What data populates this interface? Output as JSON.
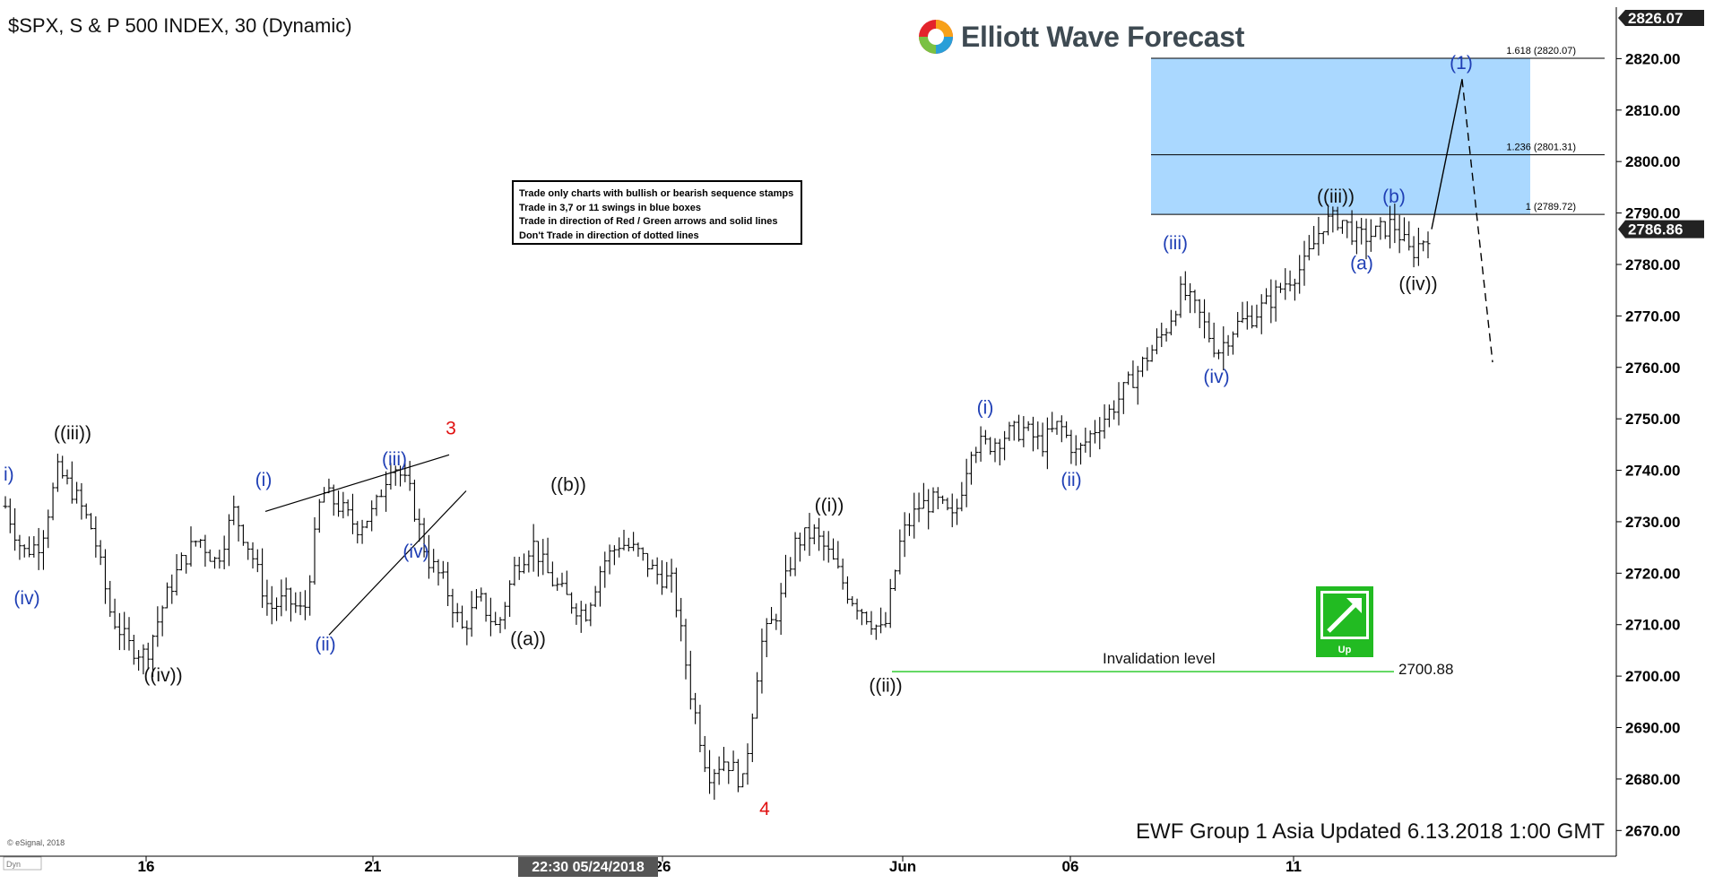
{
  "title": "$SPX, S & P 500 INDEX, 30 (Dynamic)",
  "brand": "Elliott Wave Forecast",
  "rules": [
    "Trade only charts with bullish or bearish sequence stamps",
    "Trade in 3,7 or 11 swings in blue boxes",
    "Trade in direction of Red / Green arrows and solid lines",
    "Don't Trade in direction of dotted lines"
  ],
  "footer": "EWF Group 1 Asia Updated 6.13.2018 1:00 GMT",
  "copyright": "© eSignal, 2018",
  "cursor_time": "22:30 05/24/2018",
  "chart_data": {
    "type": "bar",
    "ylim": [
      2665,
      2830
    ],
    "y_ticks": [
      2670,
      2680,
      2690,
      2700,
      2710,
      2720,
      2730,
      2740,
      2750,
      2760,
      2770,
      2780,
      2790,
      2800,
      2810,
      2820
    ],
    "y_tick_labels": [
      "2670.00",
      "2680.00",
      "2690.00",
      "2700.00",
      "2710.00",
      "2720.00",
      "2730.00",
      "2740.00",
      "2750.00",
      "2760.00",
      "2770.00",
      "2780.00",
      "2790.00",
      "2800.00",
      "2810.00",
      "2820.00"
    ],
    "x_tick_labels": [
      "16",
      "21",
      "26",
      "Jun",
      "06",
      "11"
    ],
    "high_price": "2826.07",
    "last_price": "2786.86",
    "last_price_value": 2786.86,
    "target_box": {
      "low": 2789.72,
      "high": 2820.07
    },
    "fib_levels": [
      {
        "label": "1.618 (2820.07)",
        "value": 2820.07
      },
      {
        "label": "1.236 (2801.31)",
        "value": 2801.31
      },
      {
        "label": "1 (2789.72)",
        "value": 2789.72
      }
    ],
    "invalidation": {
      "label": "Invalidation level",
      "value": 2700.88,
      "value_label": "2700.88"
    },
    "stamp_label": "Up",
    "wave_labels": [
      {
        "text": "i)",
        "price": 2738,
        "color": "blue"
      },
      {
        "text": "(iv)",
        "price": 2714,
        "color": "blue"
      },
      {
        "text": "((iii))",
        "price": 2746,
        "color": "black"
      },
      {
        "text": "((iv))",
        "price": 2699,
        "color": "black"
      },
      {
        "text": "(i)",
        "price": 2737,
        "color": "blue"
      },
      {
        "text": "(ii)",
        "price": 2705,
        "color": "blue"
      },
      {
        "text": "(iii)",
        "price": 2741,
        "color": "blue"
      },
      {
        "text": "(iv)",
        "price": 2723,
        "color": "blue"
      },
      {
        "text": "3",
        "price": 2747,
        "color": "red"
      },
      {
        "text": "((a))",
        "price": 2706,
        "color": "black"
      },
      {
        "text": "((b))",
        "price": 2736,
        "color": "black"
      },
      {
        "text": "4",
        "price": 2673,
        "color": "red"
      },
      {
        "text": "((i))",
        "price": 2732,
        "color": "black"
      },
      {
        "text": "((ii))",
        "price": 2697,
        "color": "black"
      },
      {
        "text": "(i)",
        "price": 2751,
        "color": "blue"
      },
      {
        "text": "(ii)",
        "price": 2737,
        "color": "blue"
      },
      {
        "text": "(iii)",
        "price": 2783,
        "color": "blue"
      },
      {
        "text": "(iv)",
        "price": 2757,
        "color": "blue"
      },
      {
        "text": "((iii))",
        "price": 2792,
        "color": "black"
      },
      {
        "text": "(a)",
        "price": 2779,
        "color": "blue"
      },
      {
        "text": "(b)",
        "price": 2792,
        "color": "blue"
      },
      {
        "text": "((iv))",
        "price": 2775,
        "color": "black"
      },
      {
        "text": "(1)",
        "price": 2818,
        "color": "blue"
      }
    ],
    "price_path": [
      2733,
      2724,
      2726,
      2740,
      2735,
      2728,
      2712,
      2706,
      2704,
      2714,
      2722,
      2727,
      2722,
      2732,
      2724,
      2713,
      2715,
      2712,
      2736,
      2733,
      2729,
      2732,
      2742,
      2736,
      2723,
      2718,
      2709,
      2715,
      2709,
      2721,
      2726,
      2719,
      2715,
      2712,
      2722,
      2726,
      2724,
      2720,
      2718,
      2697,
      2681,
      2684,
      2679,
      2706,
      2713,
      2726,
      2728,
      2723,
      2716,
      2712,
      2708,
      2727,
      2733,
      2734,
      2730,
      2745,
      2745,
      2747,
      2748,
      2745,
      2749,
      2743,
      2748,
      2752,
      2757,
      2762,
      2767,
      2775,
      2770,
      2763,
      2768,
      2770,
      2773,
      2777,
      2780,
      2788,
      2789,
      2785,
      2786,
      2788,
      2782,
      2786
    ]
  },
  "colors": {
    "box": "#aad8ff",
    "blue_label": "#1f3fb5",
    "red_label": "#e01010",
    "invalidation": "#33cc33",
    "stamp": "#22bb22"
  }
}
